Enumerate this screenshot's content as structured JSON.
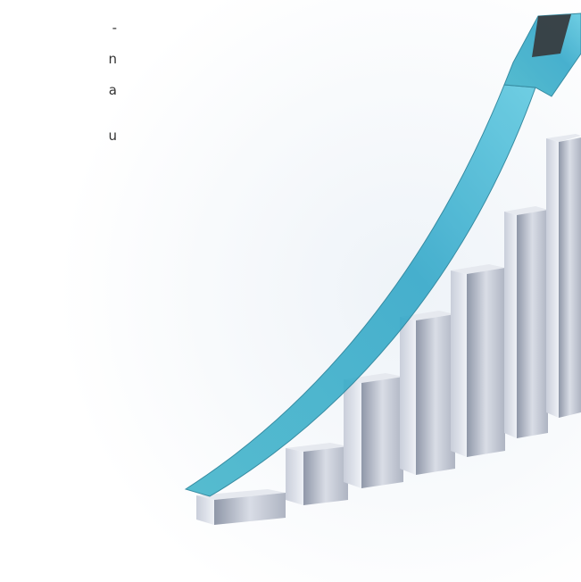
{
  "text_fragments": [
    "-",
    "n",
    "a",
    "u"
  ]
}
